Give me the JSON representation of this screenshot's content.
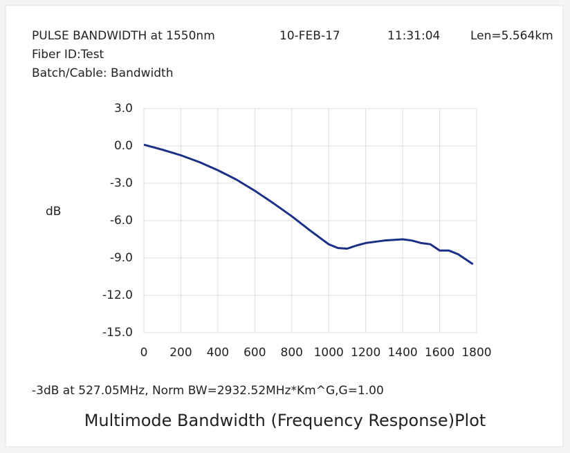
{
  "chart_data": {
    "type": "line",
    "header": [
      "PULSE BANDWIDTH at 1550nm",
      "10-FEB-17",
      "11:31:04",
      "Len=5.564km"
    ],
    "info": [
      "Fiber ID:Test",
      "Batch/Cable: Bandwidth"
    ],
    "ylabel": "dB",
    "note": "-3dB at 527.05MHz, Norm BW=2932.52MHz*Km^G,G=1.00",
    "title": "Multimode Bandwidth (Frequency Response)Plot",
    "x": [
      0,
      100,
      200,
      300,
      400,
      500,
      600,
      700,
      800,
      900,
      1000,
      1050,
      1100,
      1150,
      1200,
      1300,
      1400,
      1450,
      1500,
      1550,
      1600,
      1650,
      1700,
      1780
    ],
    "values": [
      0.1,
      -0.3,
      -0.75,
      -1.3,
      -1.95,
      -2.7,
      -3.6,
      -4.6,
      -5.65,
      -6.8,
      -7.9,
      -8.2,
      -8.25,
      -8.0,
      -7.8,
      -7.6,
      -7.5,
      -7.6,
      -7.8,
      -7.9,
      -8.4,
      -8.4,
      -8.7,
      -9.5
    ],
    "color": "#1c2f86",
    "xlim": [
      0,
      1800
    ],
    "xticks": [
      0,
      200,
      400,
      600,
      800,
      1000,
      1200,
      1400,
      1600,
      1800
    ],
    "ylim": [
      -15,
      3
    ],
    "yticks": [
      {
        "value": 3,
        "label": "3.0"
      },
      {
        "value": 0,
        "label": "0.0"
      },
      {
        "value": -3,
        "label": "-3.0"
      },
      {
        "value": -6,
        "label": "-6.0"
      },
      {
        "value": -9,
        "label": "-9.0"
      },
      {
        "value": -12,
        "label": "-12.0"
      },
      {
        "value": -15,
        "label": "-15.0"
      }
    ],
    "grid": true
  }
}
